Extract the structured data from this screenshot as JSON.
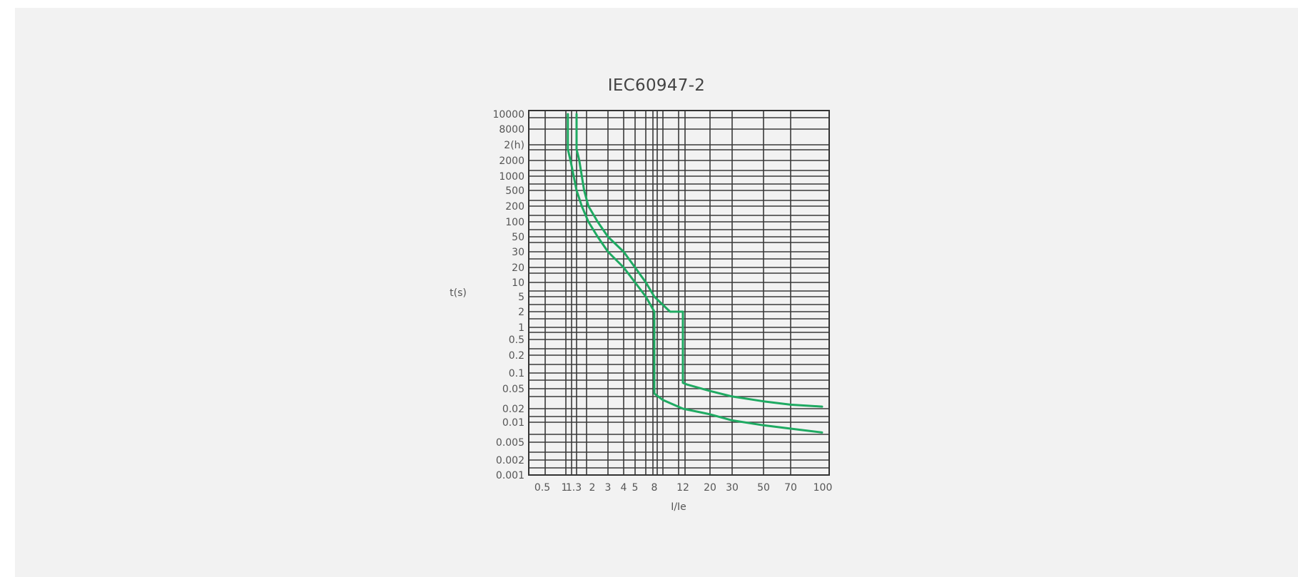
{
  "chart_data": {
    "type": "line",
    "title": "IEC60947-2",
    "xlabel": "I/Ie",
    "ylabel": "t(s)",
    "x_ticks": [
      "0.5",
      "1",
      "1.3",
      "2",
      "3",
      "4",
      "5",
      "8",
      "12",
      "20",
      "30",
      "50",
      "70",
      "100"
    ],
    "y_ticks": [
      "10000",
      "8000",
      "2(h)",
      "2000",
      "1000",
      "500",
      "200",
      "100",
      "50",
      "30",
      "20",
      "10",
      "5",
      "2",
      "1",
      "0.5",
      "0.2",
      "0.1",
      "0.05",
      "0.02",
      "0.01",
      "0.005",
      "0.002",
      "0.001"
    ],
    "line_color": "#1faa62",
    "grid": true,
    "series": [
      {
        "points": [
          [
            1.05,
            10000
          ],
          [
            1.05,
            5000
          ],
          [
            1.12,
            2000
          ],
          [
            1.3,
            500
          ],
          [
            1.5,
            200
          ],
          [
            1.8,
            100
          ],
          [
            2.3,
            50
          ],
          [
            3,
            30
          ],
          [
            4,
            20
          ],
          [
            5,
            10
          ],
          [
            6.5,
            5
          ],
          [
            8,
            2
          ],
          [
            8,
            0.5
          ],
          [
            8,
            0.1
          ],
          [
            8,
            0.04
          ],
          [
            9,
            0.03
          ],
          [
            12,
            0.02
          ],
          [
            20,
            0.015
          ],
          [
            30,
            0.011
          ],
          [
            50,
            0.009
          ],
          [
            70,
            0.008
          ],
          [
            100,
            0.007
          ]
        ]
      },
      {
        "points": [
          [
            1.3,
            10000
          ],
          [
            1.3,
            5000
          ],
          [
            1.4,
            2000
          ],
          [
            1.6,
            500
          ],
          [
            1.8,
            200
          ],
          [
            2.3,
            100
          ],
          [
            3,
            50
          ],
          [
            4,
            30
          ],
          [
            5,
            20
          ],
          [
            6.5,
            10
          ],
          [
            8,
            5
          ],
          [
            10,
            2
          ],
          [
            12,
            2
          ],
          [
            12,
            0.5
          ],
          [
            12,
            0.1
          ],
          [
            12,
            0.065
          ],
          [
            13,
            0.06
          ],
          [
            20,
            0.045
          ],
          [
            30,
            0.035
          ],
          [
            50,
            0.028
          ],
          [
            70,
            0.024
          ],
          [
            100,
            0.022
          ]
        ]
      }
    ]
  }
}
